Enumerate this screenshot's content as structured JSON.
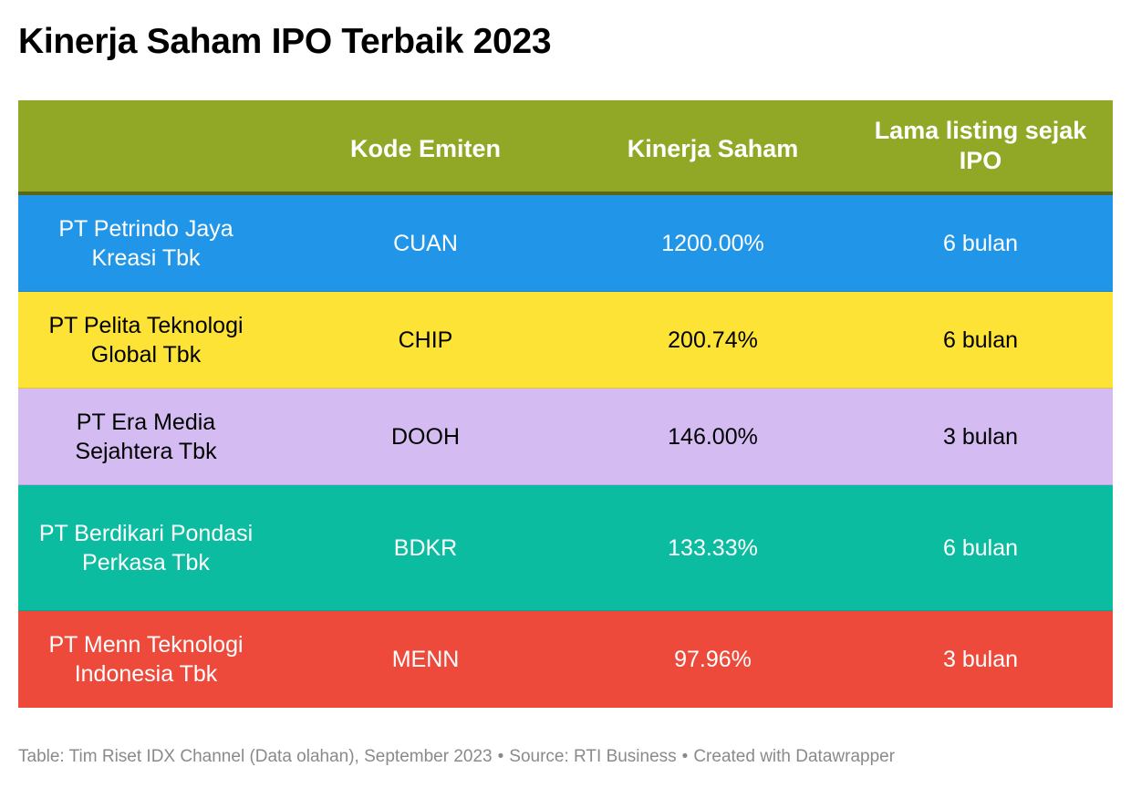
{
  "title": "Kinerja Saham IPO Terbaik 2023",
  "colors": {
    "header_bg": "#91a826",
    "header_text": "#ffffff"
  },
  "chart_data": {
    "type": "table",
    "title": "Kinerja Saham IPO Terbaik 2023",
    "columns": [
      "",
      "Kode Emiten",
      "Kinerja Saham",
      "Lama listing sejak IPO"
    ],
    "rows": [
      {
        "cells": [
          "PT Petrindo Jaya Kreasi Tbk",
          "CUAN",
          "1200.00%",
          "6 bulan"
        ],
        "bg": "#2196e8",
        "fg": "#ffffff"
      },
      {
        "cells": [
          "PT Pelita Teknologi Global Tbk",
          "CHIP",
          "200.74%",
          "6 bulan"
        ],
        "bg": "#fde335",
        "fg": "#000000"
      },
      {
        "cells": [
          "PT Era Media Sejahtera Tbk",
          "DOOH",
          "146.00%",
          "3 bulan"
        ],
        "bg": "#d4bcf3",
        "fg": "#000000"
      },
      {
        "cells": [
          "PT Berdikari Pondasi Perkasa Tbk",
          "BDKR",
          "133.33%",
          "6 bulan"
        ],
        "bg": "#0cbca0",
        "fg": "#ffffff"
      },
      {
        "cells": [
          "PT Menn Teknologi Indonesia Tbk",
          "MENN",
          "97.96%",
          "3 bulan"
        ],
        "bg": "#ee4a3b",
        "fg": "#ffffff"
      }
    ]
  },
  "footer": {
    "table_note": "Table: Tim Riset IDX Channel (Data olahan), September 2023",
    "separator": "•",
    "source": "Source: RTI Business",
    "created_with": "Created with Datawrapper"
  }
}
